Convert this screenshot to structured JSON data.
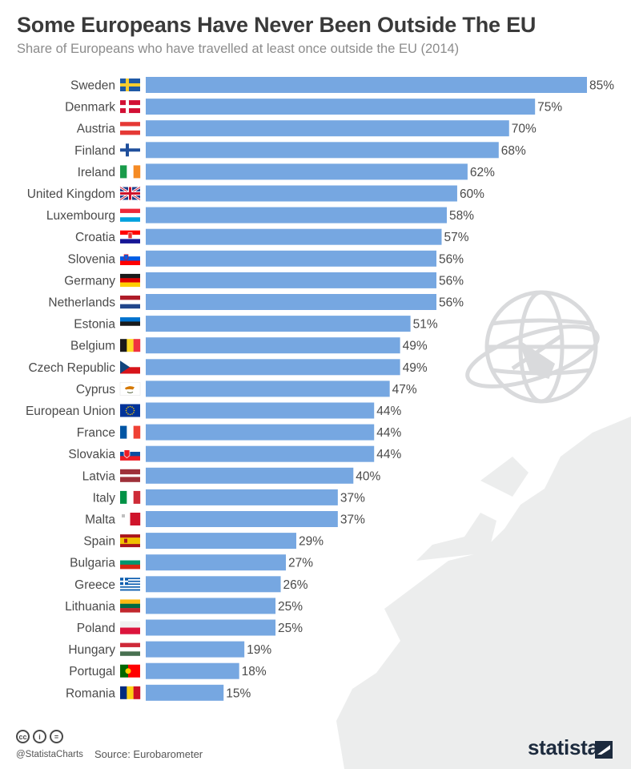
{
  "header": {
    "title": "Some Europeans Have Never Been Outside The EU",
    "subtitle": "Share of Europeans who have travelled at least once outside the EU (2014)"
  },
  "footer": {
    "handle": "@StatistaCharts",
    "source": "Source: Eurobarometer",
    "brand": "statista"
  },
  "colors": {
    "bar": "#76a7e1",
    "background_art": "#e9eaec"
  },
  "chart_data": {
    "type": "bar",
    "orientation": "horizontal",
    "title": "Some Europeans Have Never Been Outside The EU",
    "subtitle": "Share of Europeans who have travelled at least once outside the EU (2014)",
    "xlabel": "",
    "ylabel": "",
    "xlim": [
      0,
      85
    ],
    "grid": false,
    "unit": "%",
    "categories": [
      "Sweden",
      "Denmark",
      "Austria",
      "Finland",
      "Ireland",
      "United Kingdom",
      "Luxembourg",
      "Croatia",
      "Slovenia",
      "Germany",
      "Netherlands",
      "Estonia",
      "Belgium",
      "Czech Republic",
      "Cyprus",
      "European Union",
      "France",
      "Slovakia",
      "Latvia",
      "Italy",
      "Malta",
      "Spain",
      "Bulgaria",
      "Greece",
      "Lithuania",
      "Poland",
      "Hungary",
      "Portugal",
      "Romania"
    ],
    "values": [
      85,
      75,
      70,
      68,
      62,
      60,
      58,
      57,
      56,
      56,
      56,
      51,
      49,
      49,
      47,
      44,
      44,
      44,
      40,
      37,
      37,
      29,
      27,
      26,
      25,
      25,
      19,
      18,
      15
    ],
    "flags": [
      "se",
      "dk",
      "at",
      "fi",
      "ie",
      "gb",
      "lu",
      "hr",
      "si",
      "de",
      "nl",
      "ee",
      "be",
      "cz",
      "cy",
      "eu",
      "fr",
      "sk",
      "lv",
      "it",
      "mt",
      "es",
      "bg",
      "gr",
      "lt",
      "pl",
      "hu",
      "pt",
      "ro"
    ]
  }
}
